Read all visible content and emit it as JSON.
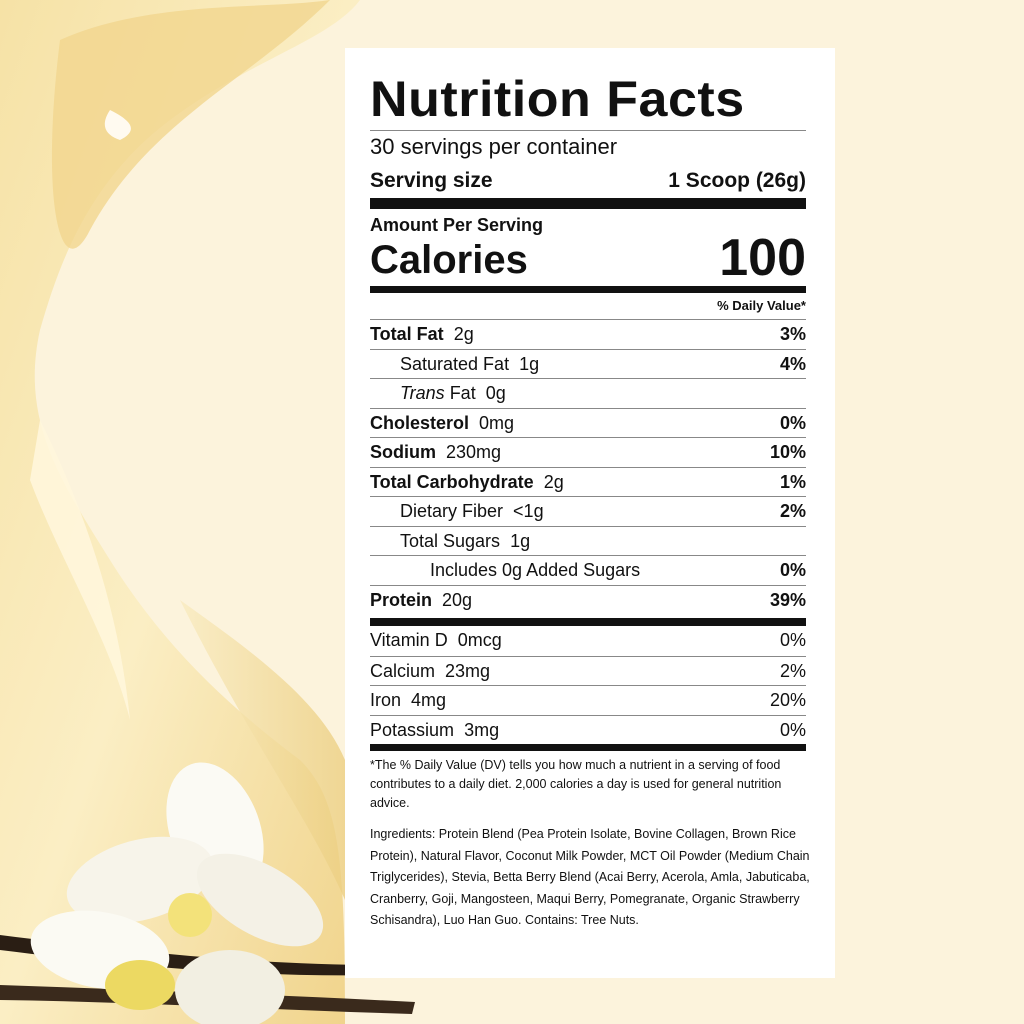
{
  "label": {
    "title": "Nutrition Facts",
    "servings": "30 servings per container",
    "serving_size_label": "Serving size",
    "serving_size_value": "1 Scoop (26g)",
    "amount_per_serving": "Amount Per Serving",
    "calories_label": "Calories",
    "calories_value": "100",
    "dv_header": "% Daily Value*",
    "nutrients": [
      {
        "name": "Total Fat",
        "amount": "2g",
        "dv": "3%",
        "bold": true,
        "indent": 0
      },
      {
        "name": "Saturated Fat",
        "amount": "1g",
        "dv": "4%",
        "bold": false,
        "indent": 1
      },
      {
        "name": "Trans",
        "name_suffix": " Fat",
        "amount": "0g",
        "dv": "",
        "bold": false,
        "indent": 1,
        "italic": true
      },
      {
        "name": "Cholesterol",
        "amount": "0mg",
        "dv": "0%",
        "bold": true,
        "indent": 0
      },
      {
        "name": "Sodium",
        "amount": "230mg",
        "dv": "10%",
        "bold": true,
        "indent": 0
      },
      {
        "name": "Total Carbohydrate",
        "amount": "2g",
        "dv": "1%",
        "bold": true,
        "indent": 0
      },
      {
        "name": "Dietary Fiber",
        "amount": "<1g",
        "dv": "2%",
        "bold": false,
        "indent": 1
      },
      {
        "name": "Total Sugars",
        "amount": "1g",
        "dv": "",
        "bold": false,
        "indent": 1
      },
      {
        "name": "Includes 0g Added Sugars",
        "amount": "",
        "dv": "0%",
        "bold": false,
        "indent": 2
      },
      {
        "name": "Protein",
        "amount": "20g",
        "dv": "39%",
        "bold": true,
        "indent": 0
      }
    ],
    "vitamins": [
      {
        "name": "Vitamin D",
        "amount": "0mcg",
        "dv": "0%"
      },
      {
        "name": "Calcium",
        "amount": "23mg",
        "dv": "2%"
      },
      {
        "name": "Iron",
        "amount": "4mg",
        "dv": "20%"
      },
      {
        "name": "Potassium",
        "amount": "3mg",
        "dv": "0%"
      }
    ],
    "footnote": "*The % Daily Value (DV) tells you how much a nutrient in a serving of food contributes to a daily diet. 2,000 calories a day is used for general nutrition advice.",
    "ingredients": "Ingredients: Protein Blend (Pea Protein Isolate, Bovine Collagen, Brown Rice Protein), Natural Flavor, Coconut Milk Powder, MCT Oil Powder (Medium Chain Triglycerides), Stevia, Betta Berry Blend (Acai Berry, Acerola, Amla, Jabuticaba, Cranberry, Goji, Mangosteen, Maqui Berry, Pomegranate, Organic Strawberry Schisandra), Luo Han Guo.  Contains: Tree Nuts."
  },
  "colors": {
    "background": "#fbf1d9",
    "cream_swirl": "#f3d98f",
    "label_bg": "#ffffff",
    "ink": "#111111"
  },
  "decor": [
    "vanilla-cream-splash",
    "vanilla-flower",
    "vanilla-pods"
  ]
}
